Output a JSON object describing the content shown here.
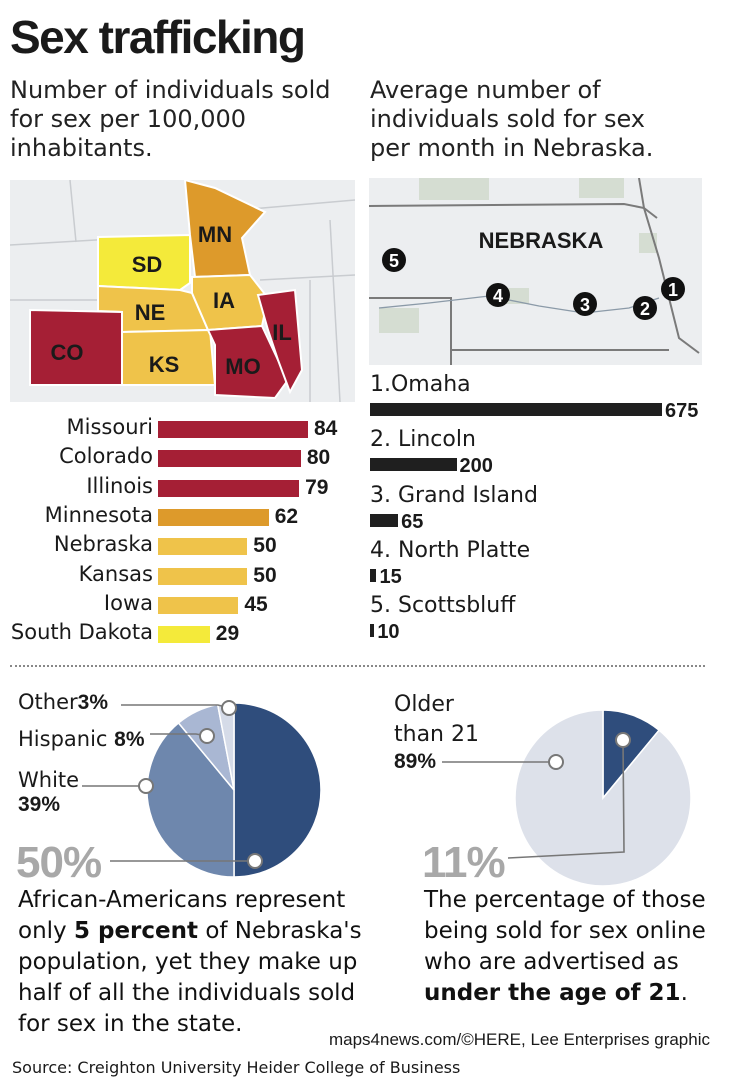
{
  "header": {
    "title": "Sex trafficking",
    "left_subtitle": "Number of individuals sold for sex per 100,000 inhabitants.",
    "left_subtitle_lines": [
      "Number of individuals sold",
      "for sex per 100,000",
      "inhabitants."
    ],
    "right_subtitle": "Average number of individuals sold for sex per month in Nebraska.",
    "right_subtitle_lines": [
      "Average number of",
      "individuals sold for sex",
      "per month in Nebraska."
    ]
  },
  "map_states": {
    "mn": "MN",
    "sd": "SD",
    "ne": "NE",
    "ia": "IA",
    "il": "IL",
    "co": "CO",
    "ks": "KS",
    "mo": "MO"
  },
  "nebraska_map": {
    "label": "NEBRASKA",
    "markers": [
      "1",
      "2",
      "3",
      "4",
      "5"
    ]
  },
  "colors": {
    "red": "#a51f35",
    "orange": "#dd9a2b",
    "light_orange": "#efc34a",
    "yellow": "#f4ea3a",
    "dark_bar": "#1f1f1f",
    "pie_dark": "#2f4d7c",
    "pie_mid": "#6e87ad",
    "pie_light": "#a9b7d3",
    "pie_pale": "#d5dbe8"
  },
  "chart_data": [
    {
      "type": "bar",
      "orientation": "horizontal",
      "title": "Number of individuals sold for sex per 100,000 inhabitants.",
      "categories": [
        "Missouri",
        "Colorado",
        "Illinois",
        "Minnesota",
        "Nebraska",
        "Kansas",
        "Iowa",
        "South Dakota"
      ],
      "values": [
        84,
        80,
        79,
        62,
        50,
        50,
        45,
        29
      ],
      "labels": [
        "84",
        "80",
        "79",
        "62",
        "50",
        "50",
        "45",
        "29"
      ],
      "bar_colors": [
        "#a51f35",
        "#a51f35",
        "#a51f35",
        "#dd9a2b",
        "#efc34a",
        "#efc34a",
        "#efc34a",
        "#f4ea3a"
      ]
    },
    {
      "type": "bar",
      "orientation": "horizontal",
      "title": "Average number of individuals sold for sex per month in Nebraska.",
      "categories": [
        "1.Omaha",
        "2. Lincoln",
        "3. Grand Island",
        "4. North Platte",
        "5. Scottsbluff"
      ],
      "values": [
        675,
        200,
        65,
        15,
        10
      ],
      "labels": [
        "675",
        "200",
        "65",
        "15",
        "10"
      ]
    },
    {
      "type": "pie",
      "title": "",
      "categories": [
        "African-Americans",
        "White",
        "Hispanic",
        "Other"
      ],
      "values": [
        50,
        39,
        8,
        3
      ],
      "slice_colors": [
        "#2f4d7c",
        "#6e87ad",
        "#a9b7d3",
        "#d5dbe8"
      ],
      "labels": {
        "other_name": "Other",
        "other_pct": "3%",
        "hispanic_name": "Hispanic",
        "hispanic_pct": "8%",
        "white_name": "White",
        "white_pct": "39%",
        "main_pct": "50%"
      }
    },
    {
      "type": "pie",
      "title": "",
      "categories": [
        "Under the age of 21",
        "Older than 21"
      ],
      "values": [
        11,
        89
      ],
      "slice_colors": [
        "#2f4d7c",
        "#dde1ea"
      ],
      "labels": {
        "older_line1": "Older",
        "older_line2": "than 21",
        "older_pct": "89%",
        "main_pct": "11%"
      }
    }
  ],
  "notes": {
    "left_para_lines": [
      "African-Americans represent",
      "only",
      "5 percent",
      "of Nebraska's",
      "population, yet they make up",
      "half of all the individuals sold",
      "for sex in the state."
    ],
    "right_para_lines": [
      "The percentage of those",
      "being sold for sex online",
      "who are advertised as",
      "under the age of 21",
      "."
    ]
  },
  "footer": {
    "credit": "maps4news.com/©HERE, Lee Enterprises graphic",
    "source": "Source: Creighton University Heider College of Business"
  }
}
